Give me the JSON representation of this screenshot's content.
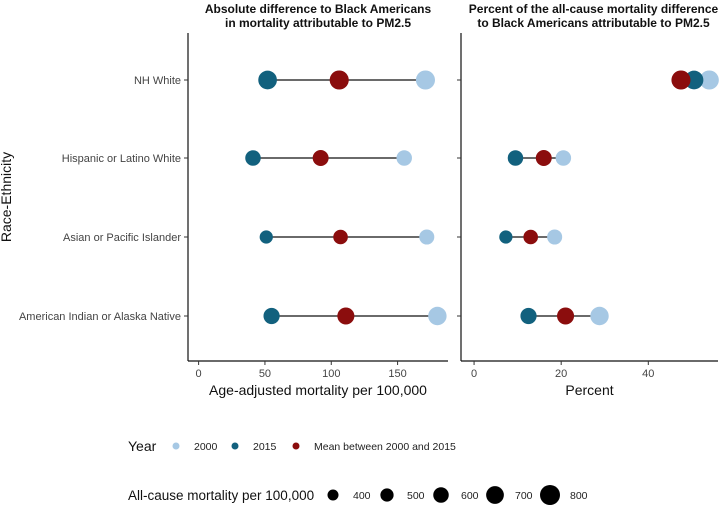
{
  "chart_data": {
    "type": "dumbbell",
    "y_axis_label": "Race-Ethnicity",
    "categories": [
      "NH White",
      "Hispanic or Latino White",
      "Asian or Pacific Islander",
      "American Indian or Alaska Native"
    ],
    "panels": [
      {
        "id": "absolute",
        "title_lines": [
          "Absolute difference to Black Americans",
          "in mortality attributable to PM2.5"
        ],
        "xlabel": "Age-adjusted mortality per 100,000",
        "xlim": [
          -8,
          188
        ],
        "xticks": [
          0,
          50,
          100,
          150
        ],
        "series": [
          {
            "name": "2000",
            "values": [
              171,
              155,
              172,
              180
            ],
            "sizes": [
              760,
              600,
              580,
              730
            ]
          },
          {
            "name": "2015",
            "values": [
              52,
              41,
              51,
              55
            ],
            "sizes": [
              740,
              600,
              500,
              630
            ]
          },
          {
            "name": "Mean between 2000 and 2015",
            "values": [
              106,
              92,
              107,
              111
            ],
            "sizes": [
              760,
              620,
              560,
              670
            ]
          }
        ]
      },
      {
        "id": "percent",
        "title_lines": [
          "Percent of the all-cause mortality difference",
          "to Black Americans attributable to PM2.5"
        ],
        "xlabel": "Percent",
        "xlim": [
          -3,
          56
        ],
        "xticks": [
          0,
          20,
          40
        ],
        "series": [
          {
            "name": "2000",
            "values": [
              54,
              20.5,
              18.5,
              28.8
            ],
            "sizes": [
              760,
              600,
              580,
              730
            ]
          },
          {
            "name": "2015",
            "values": [
              50.5,
              9.5,
              7.3,
              12.5
            ],
            "sizes": [
              740,
              600,
              500,
              630
            ]
          },
          {
            "name": "Mean between 2000 and 2015",
            "values": [
              47.5,
              16,
              13,
              21
            ],
            "sizes": [
              760,
              620,
              560,
              670
            ]
          }
        ]
      }
    ],
    "legend_year": {
      "title": "Year",
      "entries": [
        {
          "label": "2000",
          "color": "#a6c8e4"
        },
        {
          "label": "2015",
          "color": "#12617e"
        },
        {
          "label": "Mean between 2000 and 2015",
          "color": "#8b0d0d"
        }
      ]
    },
    "legend_size": {
      "title": "All-cause mortality per 100,000",
      "entries": [
        {
          "label": "400",
          "value": 400
        },
        {
          "label": "500",
          "value": 500
        },
        {
          "label": "600",
          "value": 600
        },
        {
          "label": "700",
          "value": 700
        },
        {
          "label": "800",
          "value": 800
        }
      ]
    },
    "size_range": [
      400,
      800
    ]
  }
}
